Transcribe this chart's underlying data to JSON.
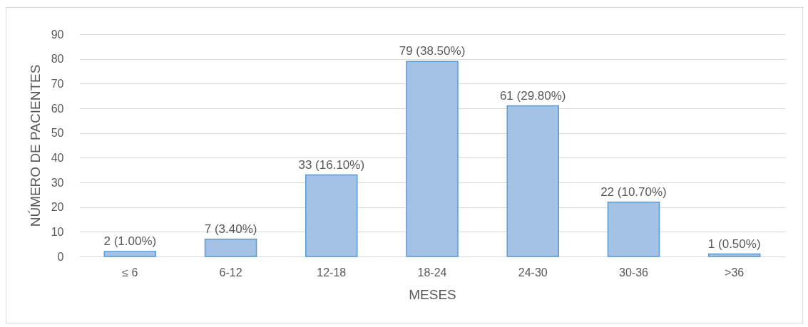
{
  "chart_data": {
    "type": "bar",
    "xlabel": "MESES",
    "ylabel": "NÚMERO DE PACIENTES",
    "categories": [
      "≤ 6",
      "6-12",
      "12-18",
      "18-24",
      "24-30",
      "30-36",
      ">36"
    ],
    "values": [
      2,
      7,
      33,
      79,
      61,
      22,
      1
    ],
    "value_labels": [
      "2 (1.00%)",
      "7 (3.40%)",
      "33 (16.10%)",
      "79 (38.50%)",
      "61 (29.80%)",
      "22 (10.70%)",
      "1 (0.50%)"
    ],
    "color": "#a4c2e6",
    "ylim": [
      0,
      90
    ],
    "yticks": [
      0,
      10,
      20,
      30,
      40,
      50,
      60,
      70,
      80,
      90
    ],
    "grid": "y"
  }
}
